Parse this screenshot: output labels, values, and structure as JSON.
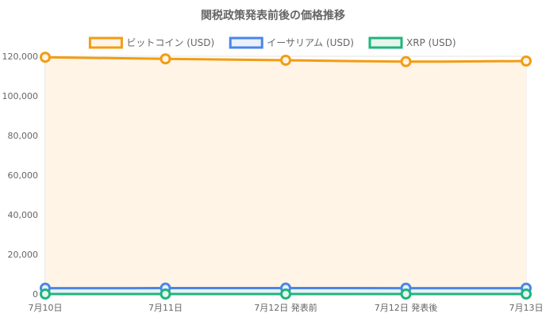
{
  "chart_data": {
    "type": "line",
    "title": "関税政策発表前後の価格推移",
    "categories": [
      "7月10日",
      "7月11日",
      "7月12日 発表前",
      "7月12日 発表後",
      "7月13日"
    ],
    "series": [
      {
        "name": "ビットコイン (USD)",
        "values": [
          119500,
          118700,
          118000,
          117300,
          117600
        ],
        "color": "#f39c12",
        "fill": "#fff4e5"
      },
      {
        "name": "イーサリアム (USD)",
        "values": [
          2950,
          2980,
          2990,
          2960,
          2950
        ],
        "color": "#4a86e8",
        "fill": "#e9f1fd"
      },
      {
        "name": "XRP (USD)",
        "values": [
          2.8,
          2.9,
          3.0,
          2.85,
          2.9
        ],
        "color": "#1fb57c",
        "fill": "#e6f6ef"
      }
    ],
    "y_ticks": [
      "0",
      "20,000",
      "40,000",
      "60,000",
      "80,000",
      "100,000",
      "120,000"
    ],
    "ylim": [
      0,
      120000
    ],
    "grid": true,
    "legend_position": "top"
  }
}
